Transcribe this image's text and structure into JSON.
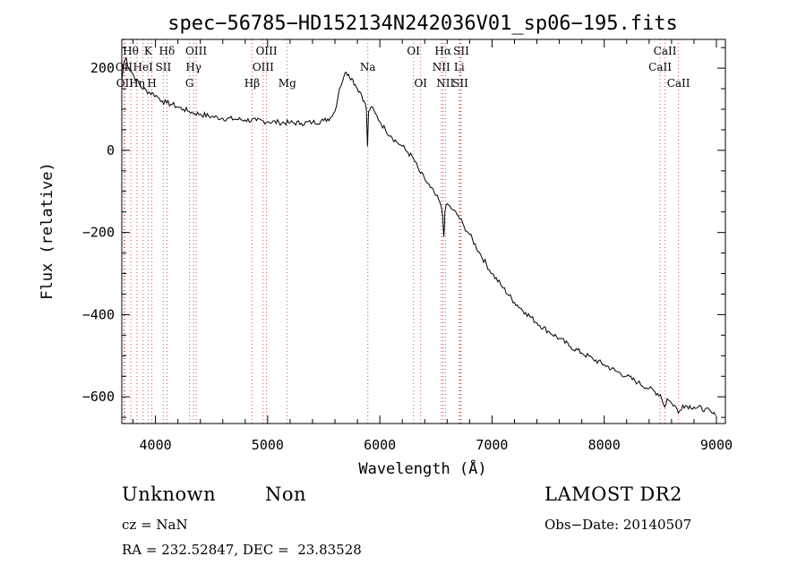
{
  "chart_data": {
    "type": "line",
    "title": "spec−56785−HD152134N242036V01_sp06−195.fits",
    "xlabel": "Wavelength (Å)",
    "ylabel": "Flux (relative)",
    "xlim": [
      3700,
      9080
    ],
    "ylim": [
      -665,
      270
    ],
    "xticks": [
      4000,
      5000,
      6000,
      7000,
      8000,
      9000
    ],
    "yticks": [
      -600,
      -400,
      -200,
      0,
      200
    ],
    "xtick_labels": [
      "4000",
      "5000",
      "6000",
      "7000",
      "8000",
      "9000"
    ],
    "ytick_labels": [
      "−600",
      "−400",
      "−200",
      "0",
      "200"
    ],
    "grid": false,
    "series": [
      {
        "x": [
          3700,
          3720,
          3740,
          3760,
          3780,
          3800,
          3830,
          3860,
          3890,
          3920,
          3950,
          3980,
          4020,
          4060,
          4100,
          4150,
          4200,
          4250,
          4300,
          4350,
          4400,
          4500,
          4600,
          4700,
          4800,
          4900,
          5000,
          5100,
          5200,
          5300,
          5400,
          5500,
          5560,
          5600,
          5640,
          5680,
          5700,
          5720,
          5750,
          5780,
          5800,
          5830,
          5860,
          5880,
          5890,
          5900,
          5920,
          5960,
          6000,
          6050,
          6100,
          6150,
          6200,
          6250,
          6300,
          6350,
          6400,
          6450,
          6500,
          6540,
          6560,
          6570,
          6580,
          6600,
          6650,
          6700,
          6750,
          6800,
          6900,
          7000,
          7100,
          7200,
          7300,
          7400,
          7500,
          7600,
          7700,
          7800,
          7900,
          8000,
          8100,
          8200,
          8300,
          8400,
          8500,
          8540,
          8560,
          8600,
          8640,
          8660,
          8700,
          8800,
          8900,
          8960,
          8990
        ],
        "y": [
          170,
          215,
          225,
          200,
          195,
          185,
          170,
          160,
          150,
          145,
          140,
          138,
          130,
          120,
          115,
          112,
          105,
          100,
          95,
          90,
          88,
          82,
          78,
          76,
          74,
          72,
          70,
          68,
          67,
          66,
          68,
          72,
          80,
          95,
          150,
          180,
          190,
          185,
          175,
          160,
          150,
          140,
          120,
          100,
          10,
          95,
          105,
          90,
          70,
          50,
          35,
          20,
          10,
          -5,
          -20,
          -50,
          -70,
          -90,
          -110,
          -130,
          -160,
          -210,
          -150,
          -130,
          -145,
          -160,
          -185,
          -205,
          -255,
          -300,
          -335,
          -370,
          -395,
          -420,
          -440,
          -458,
          -478,
          -493,
          -508,
          -522,
          -537,
          -550,
          -565,
          -580,
          -595,
          -625,
          -605,
          -615,
          -625,
          -640,
          -620,
          -625,
          -630,
          -640,
          -645
        ]
      }
    ],
    "line_labels": [
      {
        "text": "Hθ",
        "x": 3780,
        "row": 1
      },
      {
        "text": "K",
        "x": 3934,
        "row": 1
      },
      {
        "text": "Hδ",
        "x": 4102,
        "row": 1
      },
      {
        "text": "OIII",
        "x": 4363,
        "row": 1
      },
      {
        "text": "OIII",
        "x": 4990,
        "row": 1
      },
      {
        "text": "OI",
        "x": 6300,
        "row": 1
      },
      {
        "text": "Hα",
        "x": 6563,
        "row": 1
      },
      {
        "text": "SII",
        "x": 6725,
        "row": 1
      },
      {
        "text": "CaII",
        "x": 8542,
        "row": 1
      },
      {
        "text": "OII",
        "x": 3720,
        "row": 2
      },
      {
        "text": "HeI",
        "x": 3889,
        "row": 2
      },
      {
        "text": "SII",
        "x": 4070,
        "row": 2
      },
      {
        "text": "Hγ",
        "x": 4340,
        "row": 2
      },
      {
        "text": "OIII",
        "x": 4960,
        "row": 2
      },
      {
        "text": "Na",
        "x": 5893,
        "row": 2
      },
      {
        "text": "NII",
        "x": 6548,
        "row": 2
      },
      {
        "text": "Li",
        "x": 6708,
        "row": 2
      },
      {
        "text": "CaII",
        "x": 8498,
        "row": 2
      },
      {
        "text": "OII",
        "x": 3727,
        "row": 3
      },
      {
        "text": "Hη",
        "x": 3835,
        "row": 3
      },
      {
        "text": "H",
        "x": 3968,
        "row": 3
      },
      {
        "text": "G",
        "x": 4304,
        "row": 3
      },
      {
        "text": "Hβ",
        "x": 4861,
        "row": 3
      },
      {
        "text": "Mg",
        "x": 5175,
        "row": 3
      },
      {
        "text": "OI",
        "x": 6364,
        "row": 3
      },
      {
        "text": "NII",
        "x": 6584,
        "row": 3
      },
      {
        "text": "SII",
        "x": 6717,
        "row": 3
      },
      {
        "text": "CaII",
        "x": 8662,
        "row": 3
      }
    ],
    "line_color": "#d94b4b"
  },
  "info": {
    "class_label": "Unknown",
    "subclass_label": "Non",
    "survey": "LAMOST DR2",
    "cz": "cz = NaN",
    "obs_date": "Obs−Date: 20140507",
    "radec": "RA = 232.52847, DEC =  23.83528"
  }
}
